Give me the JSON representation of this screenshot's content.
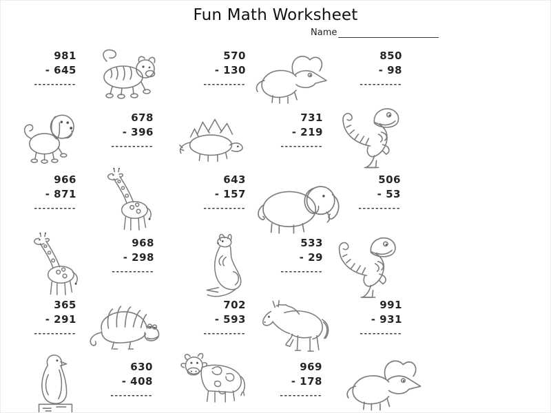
{
  "page": {
    "title": "Fun Math Worksheet",
    "name_label": "Name",
    "background": "#ffffff",
    "text_color": "#222222"
  },
  "worksheet": {
    "operation": "subtraction",
    "answer_line": "----------",
    "rows": [
      {
        "cells": [
          {
            "type": "problem",
            "top": "981",
            "bottom": "- 645"
          },
          {
            "type": "animal",
            "animal": "tiger"
          },
          {
            "type": "problem",
            "top": "570",
            "bottom": "- 130"
          },
          {
            "type": "animal",
            "animal": "triceratops"
          },
          {
            "type": "problem",
            "top": "850",
            "bottom": "- 98"
          }
        ]
      },
      {
        "cells": [
          {
            "type": "animal",
            "animal": "dog"
          },
          {
            "type": "problem",
            "top": "678",
            "bottom": "- 396"
          },
          {
            "type": "animal",
            "animal": "stegosaurus"
          },
          {
            "type": "problem",
            "top": "731",
            "bottom": "- 219"
          },
          {
            "type": "animal",
            "animal": "trex"
          }
        ]
      },
      {
        "cells": [
          {
            "type": "problem",
            "top": "966",
            "bottom": "- 871"
          },
          {
            "type": "animal",
            "animal": "giraffe"
          },
          {
            "type": "problem",
            "top": "643",
            "bottom": "- 157"
          },
          {
            "type": "animal",
            "animal": "elephant"
          },
          {
            "type": "problem",
            "top": "506",
            "bottom": "- 53"
          }
        ]
      },
      {
        "cells": [
          {
            "type": "animal",
            "animal": "giraffe"
          },
          {
            "type": "problem",
            "top": "968",
            "bottom": "- 298"
          },
          {
            "type": "animal",
            "animal": "kangaroo"
          },
          {
            "type": "problem",
            "top": "533",
            "bottom": "- 29"
          },
          {
            "type": "animal",
            "animal": "trex"
          }
        ]
      },
      {
        "cells": [
          {
            "type": "problem",
            "top": "365",
            "bottom": "- 291"
          },
          {
            "type": "animal",
            "animal": "dimetrodon"
          },
          {
            "type": "problem",
            "top": "702",
            "bottom": "- 593"
          },
          {
            "type": "animal",
            "animal": "horse"
          },
          {
            "type": "problem",
            "top": "991",
            "bottom": "- 931"
          }
        ]
      },
      {
        "cells": [
          {
            "type": "animal",
            "animal": "penguin"
          },
          {
            "type": "problem",
            "top": "630",
            "bottom": "- 408"
          },
          {
            "type": "animal",
            "animal": "cow"
          },
          {
            "type": "problem",
            "top": "969",
            "bottom": "- 178"
          },
          {
            "type": "animal",
            "animal": "triceratops"
          }
        ]
      }
    ]
  }
}
